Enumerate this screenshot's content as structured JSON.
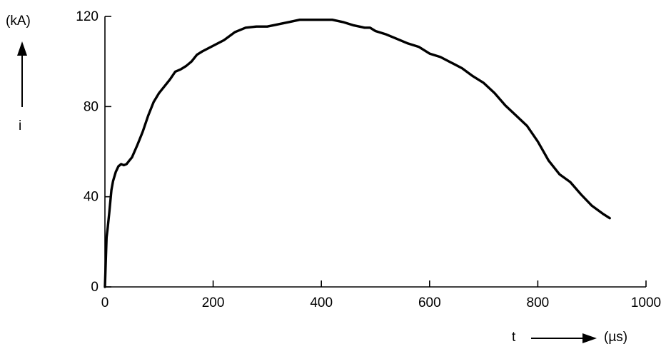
{
  "chart_data": {
    "type": "line",
    "title": "",
    "xlabel": "t",
    "ylabel": "i",
    "x_unit": "(µs)",
    "y_unit": "(kA)",
    "xlim": [
      0,
      1000
    ],
    "ylim": [
      0,
      120
    ],
    "x_ticks": [
      0,
      200,
      400,
      600,
      800,
      1000
    ],
    "y_ticks": [
      0,
      40,
      80,
      120
    ],
    "x_tick_labels": [
      "0",
      "200",
      "400",
      "600",
      "800",
      "1000"
    ],
    "y_tick_labels": [
      "0",
      "40",
      "80",
      "120"
    ],
    "grid": false,
    "series": [
      {
        "color": "#000000",
        "x": [
          0,
          3,
          5,
          8,
          12,
          15,
          20,
          25,
          30,
          35,
          40,
          45,
          50,
          60,
          70,
          80,
          90,
          100,
          110,
          120,
          130,
          140,
          150,
          160,
          170,
          180,
          200,
          220,
          240,
          260,
          280,
          300,
          320,
          340,
          360,
          380,
          400,
          420,
          440,
          460,
          480,
          490,
          500,
          520,
          540,
          560,
          580,
          600,
          620,
          640,
          660,
          680,
          700,
          720,
          740,
          760,
          780,
          800,
          820,
          840,
          860,
          880,
          900,
          920,
          933
        ],
        "y": [
          0,
          22,
          26,
          33,
          43,
          47,
          51,
          53.5,
          54.5,
          54,
          54.5,
          56,
          57.5,
          63,
          69,
          76,
          82,
          86,
          89,
          92,
          95.5,
          96.5,
          98,
          100,
          103,
          104.5,
          107,
          109.5,
          113,
          115,
          115.5,
          115.5,
          116.5,
          117.5,
          118.5,
          118.5,
          118.5,
          118.5,
          117.5,
          116,
          115,
          115,
          113.5,
          112,
          110,
          108,
          106.5,
          103.5,
          102,
          99.5,
          97,
          93.5,
          90.5,
          86,
          80.5,
          76,
          71.5,
          64.5,
          56,
          50,
          46.5,
          41,
          36,
          32.5,
          30.5
        ]
      }
    ]
  }
}
